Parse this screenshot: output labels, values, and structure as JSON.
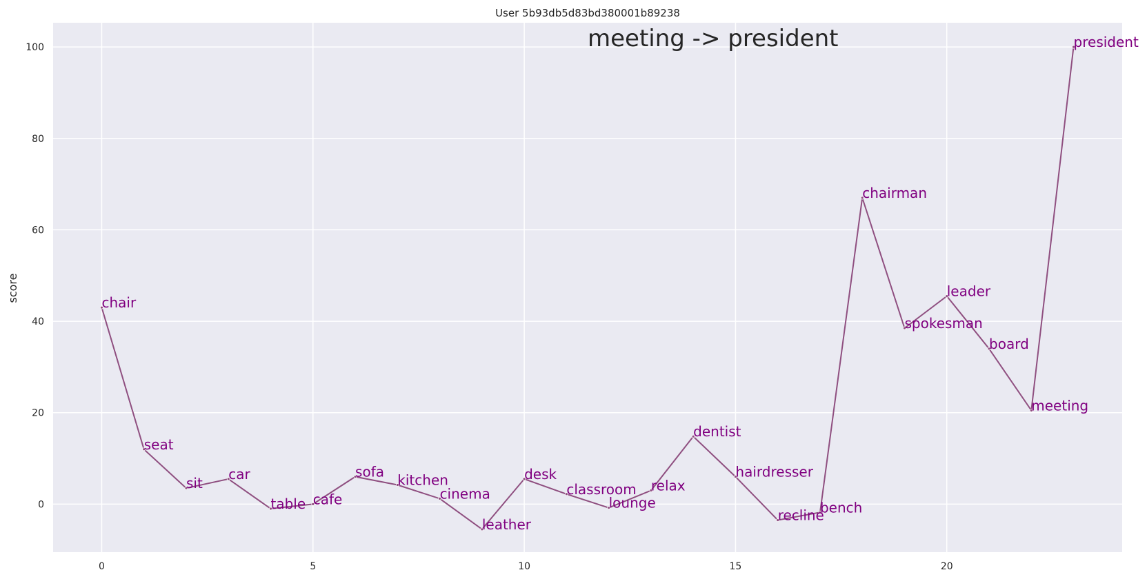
{
  "chart_data": {
    "type": "line",
    "title": "User 5b93db5d83bd380001b89238",
    "annotation": "meeting -> president",
    "xlabel": "",
    "ylabel": "score",
    "xlim": [
      -1.15,
      24.15
    ],
    "ylim": [
      -10.5,
      105.3
    ],
    "x_ticks": [
      0,
      5,
      10,
      15,
      20
    ],
    "y_ticks": [
      0,
      20,
      40,
      60,
      80,
      100
    ],
    "grid": true,
    "line_color": "#8f4f80",
    "label_color": "#800080",
    "plot_background": "#eaeaf2",
    "grid_color": "#ffffff",
    "series": [
      {
        "x": [
          0,
          1,
          2,
          3,
          4,
          5,
          6,
          7,
          8,
          9,
          10,
          11,
          12,
          13,
          14,
          15,
          16,
          17,
          18,
          19,
          20,
          21,
          22,
          23
        ],
        "values": [
          43,
          12,
          3.5,
          5.5,
          -1,
          0,
          6,
          4.2,
          1.2,
          -5.5,
          5.5,
          2.2,
          -0.8,
          3,
          14.8,
          6,
          -3.5,
          -1.8,
          67,
          38.5,
          45.5,
          34,
          20.5,
          100
        ],
        "labels": [
          "chair",
          "seat",
          "sit",
          "car",
          "table",
          "cafe",
          "sofa",
          "kitchen",
          "cinema",
          "leather",
          "desk",
          "classroom",
          "lounge",
          "relax",
          "dentist",
          "hairdresser",
          "recline",
          "bench",
          "chairman",
          "spokesman",
          "leader",
          "board",
          "meeting",
          "president"
        ]
      }
    ]
  }
}
